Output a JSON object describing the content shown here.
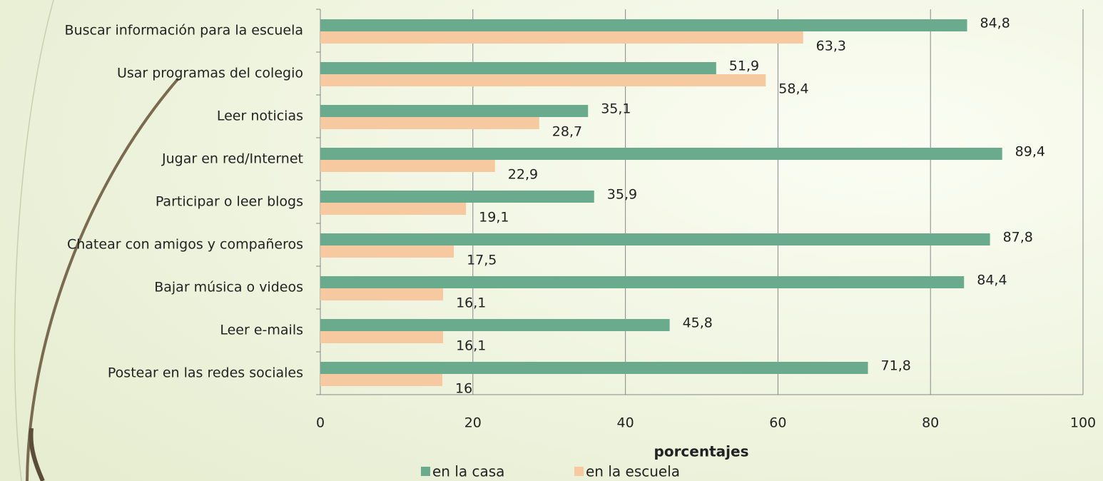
{
  "chart_data": {
    "type": "bar",
    "orientation": "horizontal",
    "categories": [
      "Buscar información para la escuela",
      "Usar programas del colegio",
      "Leer noticias",
      "Jugar en red/Internet",
      "Participar o leer blogs",
      "Chatear con amigos y compañeros",
      "Bajar música o videos",
      "Leer e-mails",
      "Postear en las redes sociales"
    ],
    "series": [
      {
        "name": "en la casa",
        "color": "#6aab8e",
        "values": [
          84.8,
          51.9,
          35.1,
          89.4,
          35.9,
          87.8,
          84.4,
          45.8,
          71.8
        ],
        "value_labels": [
          "84,8",
          "51,9",
          "35,1",
          "89,4",
          "35,9",
          "87,8",
          "84,4",
          "45,8",
          "71,8"
        ]
      },
      {
        "name": "en la escuela",
        "color": "#f7c9a0",
        "values": [
          63.3,
          58.4,
          28.7,
          22.9,
          19.1,
          17.5,
          16.1,
          16.1,
          16
        ],
        "value_labels": [
          "63,3",
          "58,4",
          "28,7",
          "22,9",
          "19,1",
          "17,5",
          "16,1",
          "16,1",
          "16"
        ]
      }
    ],
    "x_label": "porcentajes",
    "xlim": [
      0,
      100
    ],
    "xticks": [
      0,
      20,
      40,
      60,
      80,
      100
    ],
    "grid": true,
    "legend": "bottom"
  }
}
